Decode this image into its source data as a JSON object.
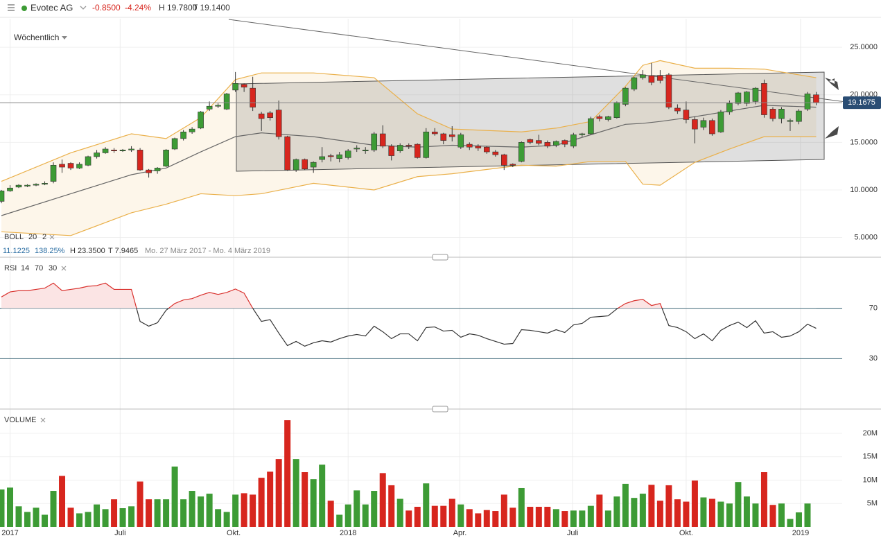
{
  "header": {
    "symbol": "Evotec AG",
    "change": "-0.8500",
    "change_pct": "-4.24%",
    "high": "H 19.7800",
    "low": "T 19.1400"
  },
  "chart_data": [
    {
      "type": "candlestick",
      "interval": "Wöchentlich",
      "indicator": {
        "name": "BOLL",
        "period": 20,
        "stddev": 2,
        "stats": [
          "11.1225",
          "138.25%",
          "H 23.3500",
          "T 7.9465"
        ],
        "range": "Mo. 27 März 2017 - Mo. 4 März 2019"
      },
      "up_color": "#3d9b35",
      "down_color": "#d7261e",
      "xlim": [
        -0.16,
        97
      ],
      "ylim": [
        3,
        28
      ],
      "yticks": [
        {
          "value": 5,
          "label": "5.0000"
        },
        {
          "value": 10,
          "label": "10.0000"
        },
        {
          "value": 15,
          "label": "15.0000"
        },
        {
          "value": 20,
          "label": "20.0000"
        },
        {
          "value": 25,
          "label": "25.0000"
        }
      ],
      "last_price": {
        "value": 19.1675,
        "label": "19.1675"
      },
      "open": [
        8.8,
        9.9,
        10.3,
        10.4,
        10.5,
        10.6,
        10.9,
        12.7,
        12.8,
        12.3,
        12.6,
        13.5,
        13.9,
        14.2,
        14.1,
        14.2,
        14.2,
        12.1,
        12.0,
        12.5,
        14.3,
        15.4,
        16.1,
        16.5,
        18.5,
        18.8,
        18.5,
        20.5,
        21.1,
        20.7,
        18.0,
        18.1,
        18.4,
        15.6,
        12.1,
        13.2,
        12.4,
        13.2,
        13.6,
        13.3,
        13.4,
        14.3,
        14.1,
        14.2,
        15.9,
        14.6,
        14.1,
        14.7,
        14.8,
        13.4,
        16.1,
        15.9,
        15.8,
        14.5,
        14.8,
        14.6,
        14.5,
        14.0,
        13.7,
        12.7,
        13.0,
        15.3,
        15.2,
        15.0,
        14.7,
        15.2,
        14.6,
        15.8,
        15.9,
        17.7,
        17.4,
        17.6,
        19.0,
        20.6,
        21.8,
        22.0,
        22.0,
        22.1,
        18.6,
        18.4,
        17.4,
        16.6,
        17.3,
        16.1,
        18.2,
        19.1,
        19.1,
        19.3,
        21.2,
        18.5,
        17.5,
        17.2,
        17.2,
        18.5,
        20.0
      ],
      "high": [
        10.0,
        10.5,
        10.6,
        10.6,
        10.7,
        10.9,
        12.9,
        13.2,
        12.9,
        12.9,
        13.6,
        14.2,
        14.5,
        14.4,
        14.3,
        14.6,
        14.4,
        12.2,
        12.4,
        14.3,
        15.5,
        16.3,
        16.6,
        18.3,
        19.3,
        19.1,
        20.2,
        22.4,
        21.2,
        21.9,
        18.2,
        18.3,
        19.4,
        15.7,
        13.3,
        13.3,
        13.0,
        14.5,
        13.8,
        14.0,
        14.3,
        14.7,
        14.5,
        16.1,
        16.8,
        14.8,
        14.9,
        14.9,
        14.9,
        16.5,
        16.5,
        16.0,
        16.7,
        16.0,
        15.0,
        14.8,
        14.6,
        14.2,
        13.8,
        12.8,
        15.1,
        15.4,
        15.8,
        15.2,
        15.2,
        15.3,
        16.0,
        16.0,
        17.7,
        17.9,
        17.8,
        19.3,
        20.8,
        21.9,
        22.6,
        23.35,
        22.6,
        22.3,
        19.0,
        19.3,
        17.7,
        17.6,
        17.5,
        18.4,
        19.4,
        20.3,
        20.4,
        20.8,
        21.6,
        18.7,
        18.7,
        17.5,
        18.5,
        20.3,
        20.3
      ],
      "low": [
        8.6,
        9.8,
        10.2,
        10.3,
        10.4,
        10.5,
        10.7,
        11.8,
        12.1,
        12.2,
        12.5,
        13.3,
        13.8,
        13.9,
        14.0,
        14.0,
        12.0,
        11.3,
        11.7,
        12.4,
        14.2,
        15.2,
        15.9,
        16.4,
        18.3,
        18.6,
        18.4,
        20.3,
        20.3,
        18.3,
        16.2,
        17.3,
        15.3,
        12.0,
        11.9,
        12.1,
        11.8,
        12.9,
        13.0,
        12.9,
        13.2,
        14.0,
        13.8,
        14.0,
        14.4,
        13.1,
        13.9,
        14.3,
        13.3,
        13.3,
        15.7,
        14.8,
        15.1,
        14.3,
        14.2,
        14.1,
        13.8,
        13.5,
        12.1,
        12.4,
        12.9,
        14.8,
        14.7,
        14.4,
        14.5,
        14.5,
        14.4,
        15.6,
        15.8,
        17.2,
        17.2,
        17.5,
        18.8,
        20.4,
        21.6,
        21.0,
        21.2,
        18.5,
        18.0,
        17.0,
        14.9,
        16.3,
        15.7,
        16.0,
        17.9,
        18.9,
        18.8,
        19.0,
        17.6,
        17.2,
        17.0,
        16.2,
        16.9,
        18.3,
        18.9
      ],
      "close": [
        9.9,
        10.2,
        10.5,
        10.5,
        10.6,
        10.7,
        12.6,
        12.4,
        12.3,
        12.7,
        13.5,
        13.9,
        14.3,
        14.1,
        14.2,
        14.3,
        12.1,
        11.8,
        12.3,
        14.2,
        15.4,
        16.1,
        16.4,
        18.2,
        18.8,
        18.9,
        20.1,
        21.2,
        20.8,
        18.7,
        17.5,
        17.6,
        15.6,
        12.1,
        13.2,
        12.2,
        12.9,
        13.5,
        13.5,
        13.7,
        14.1,
        14.4,
        14.2,
        15.9,
        14.6,
        13.6,
        14.7,
        14.6,
        13.4,
        16.1,
        15.9,
        15.2,
        15.6,
        15.8,
        14.5,
        14.4,
        14.0,
        13.7,
        12.6,
        12.6,
        15.0,
        15.0,
        14.9,
        14.6,
        15.1,
        14.8,
        15.8,
        15.9,
        17.5,
        17.5,
        17.7,
        19.2,
        20.7,
        21.8,
        22.1,
        21.3,
        21.5,
        18.7,
        18.3,
        17.4,
        16.4,
        17.3,
        15.9,
        18.2,
        19.1,
        20.2,
        20.3,
        20.7,
        17.9,
        17.5,
        18.5,
        17.3,
        18.3,
        20.1,
        19.17
      ],
      "bands": {
        "x": [
          0,
          8,
          15,
          19,
          23,
          27,
          30,
          36,
          43,
          48,
          52,
          60,
          64,
          68,
          72,
          74,
          76,
          80,
          84,
          88,
          94
        ],
        "upper": [
          10.9,
          13.9,
          15.9,
          15.4,
          17.6,
          21.6,
          22.3,
          22.3,
          21.8,
          18.0,
          16.4,
          16.1,
          16.5,
          17.2,
          20.9,
          23.1,
          23.6,
          22.8,
          22.8,
          22.7,
          21.8
        ],
        "middle": [
          7.3,
          9.6,
          11.6,
          12.3,
          14.0,
          15.6,
          16.0,
          15.6,
          14.7,
          14.5,
          14.7,
          14.5,
          14.7,
          15.8,
          16.9,
          17.0,
          17.2,
          17.7,
          18.3,
          18.9,
          18.7
        ],
        "lower": [
          5.6,
          5.2,
          7.6,
          8.5,
          9.6,
          9.4,
          9.6,
          10.7,
          10.0,
          11.4,
          11.7,
          12.6,
          12.5,
          13.0,
          13.0,
          10.6,
          10.5,
          12.9,
          14.3,
          15.6,
          15.6
        ],
        "color": "#eab04a",
        "middle_color": "#666666",
        "fill": "#fdf6ea"
      }
    },
    {
      "type": "line",
      "name": "RSI",
      "period": 14,
      "color": "#333333",
      "overbought_color": "#d9302c",
      "overbought_fill": "#fbe4e4",
      "level_color": "#2e5c6e",
      "xlim": [
        -0.16,
        97
      ],
      "ylim": [
        -10,
        110
      ],
      "yticks": [
        30,
        70
      ],
      "values": [
        79,
        83,
        84,
        84,
        85,
        86,
        90,
        84,
        85,
        86,
        87.5,
        88,
        90,
        85,
        85,
        85,
        59.6,
        55.8,
        58.5,
        68.4,
        73.8,
        76.6,
        77.7,
        80.4,
        82.6,
        81,
        82.6,
        85.3,
        82,
        70,
        59.6,
        61,
        50.3,
        40.4,
        43.7,
        39.9,
        42.6,
        44.2,
        43.2,
        45.9,
        48,
        49.2,
        48,
        55.8,
        51.4,
        45.9,
        49.7,
        49.7,
        44.2,
        54.7,
        55.2,
        51.9,
        52.5,
        47,
        49.7,
        48.6,
        45.9,
        43.7,
        41.5,
        42,
        53,
        52.5,
        51.4,
        50.3,
        53,
        50.8,
        56.8,
        58,
        62.9,
        63.4,
        64,
        69.5,
        73.8,
        76,
        77.1,
        72.2,
        73.8,
        56.3,
        54.7,
        51.4,
        45.9,
        49.7,
        44.2,
        52.5,
        56.3,
        59,
        54.7,
        60.1,
        50.3,
        51.4,
        47,
        48,
        51.4,
        57.4,
        54.1
      ]
    },
    {
      "type": "bar",
      "name": "VOLUME",
      "xlim": [
        -0.16,
        97
      ],
      "ylim": [
        0,
        24
      ],
      "yticks": [
        {
          "value": 5,
          "label": "5M"
        },
        {
          "value": 10,
          "label": "10M"
        },
        {
          "value": 15,
          "label": "15M"
        },
        {
          "value": 20,
          "label": "20M"
        }
      ],
      "xticks": [
        {
          "value": 1,
          "label": "2017"
        },
        {
          "value": 13.7,
          "label": "Juli"
        },
        {
          "value": 26.8,
          "label": "Okt."
        },
        {
          "value": 40,
          "label": "2018"
        },
        {
          "value": 52.9,
          "label": "Apr."
        },
        {
          "value": 65.9,
          "label": "Juli"
        },
        {
          "value": 79,
          "label": "Okt."
        },
        {
          "value": 92.2,
          "label": "2019"
        }
      ],
      "values": [
        8.0,
        8.4,
        4.4,
        3.2,
        4.1,
        2.6,
        7.7,
        10.9,
        4.1,
        2.9,
        3.2,
        4.8,
        3.8,
        5.9,
        4.0,
        4.4,
        9.7,
        5.9,
        5.9,
        5.9,
        12.9,
        5.9,
        7.7,
        6.5,
        7.1,
        3.8,
        3.2,
        6.9,
        7.2,
        6.9,
        10.5,
        11.8,
        14.5,
        22.8,
        14.5,
        11.7,
        10.2,
        13.3,
        5.6,
        2.6,
        4.8,
        7.8,
        4.8,
        7.7,
        11.5,
        8.9,
        6.0,
        3.5,
        4.3,
        9.3,
        4.5,
        4.5,
        6.0,
        4.8,
        3.8,
        2.9,
        3.6,
        3.4,
        6.9,
        4.1,
        8.3,
        4.3,
        4.3,
        4.3,
        3.8,
        3.4,
        3.5,
        3.5,
        4.5,
        6.9,
        3.5,
        6.5,
        9.2,
        6.2,
        7.1,
        9.0,
        5.6,
        8.9,
        5.9,
        5.4,
        9.9,
        6.3,
        6.0,
        5.4,
        5.0,
        9.6,
        6.5,
        5.0,
        11.7,
        4.7,
        5.0,
        1.7,
        3.1,
        5.0,
        null
      ]
    }
  ]
}
